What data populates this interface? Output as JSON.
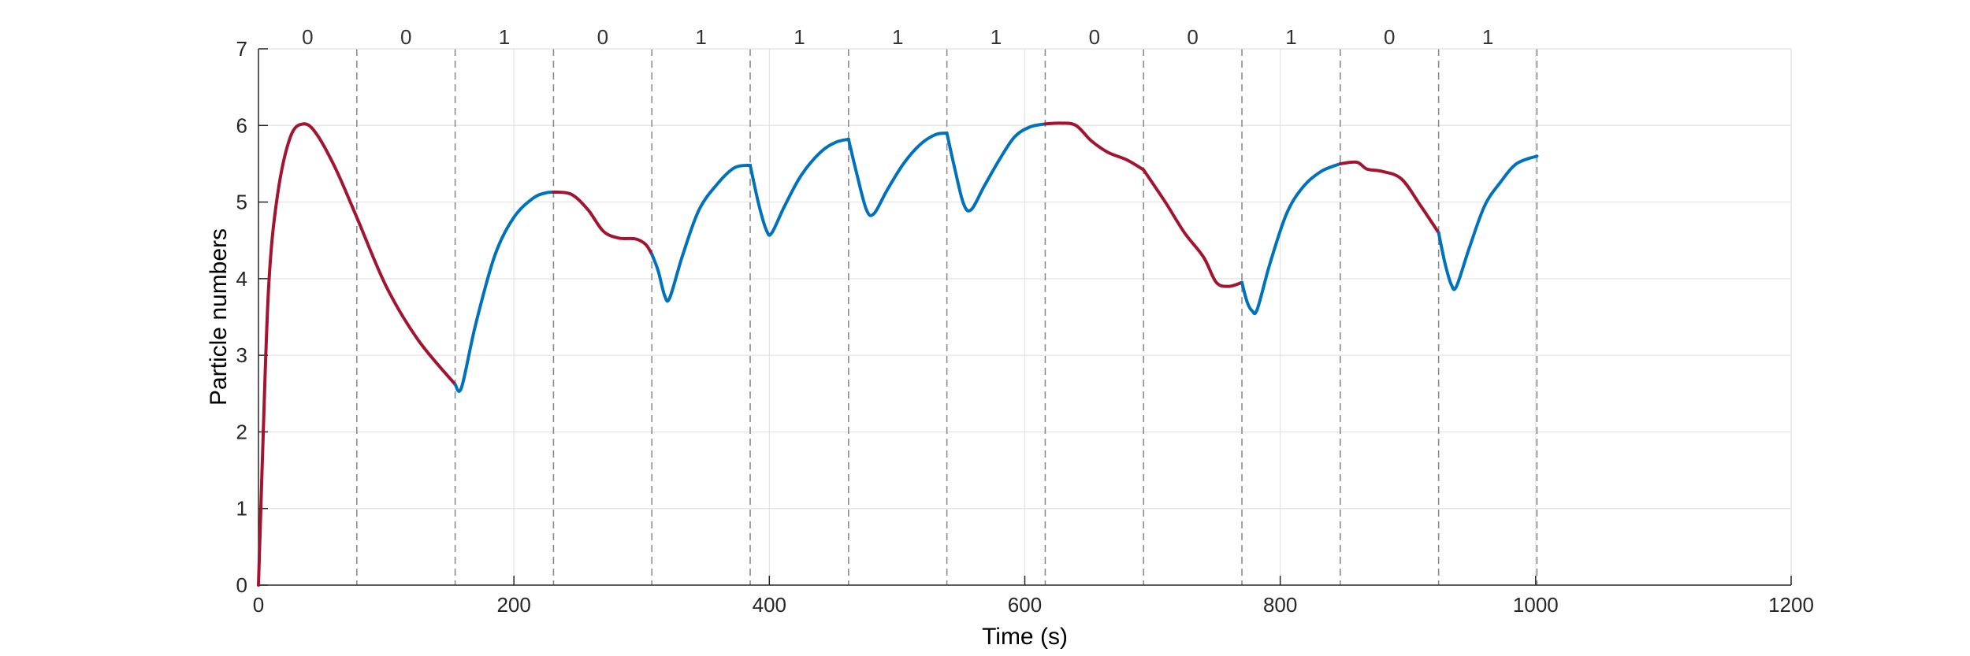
{
  "chart_data": {
    "type": "line",
    "xlabel": "Time (s)",
    "ylabel": "Particle numbers",
    "xlim": [
      0,
      1200
    ],
    "ylim": [
      0,
      7
    ],
    "xticks": [
      0,
      200,
      400,
      600,
      800,
      1000,
      1200
    ],
    "yticks": [
      0,
      1,
      2,
      3,
      4,
      5,
      6,
      7
    ],
    "grid": true,
    "boundaries": [
      77,
      154,
      231,
      308,
      385,
      462,
      539,
      616,
      693,
      770,
      847,
      924,
      1001
    ],
    "segment_labels": [
      "0",
      "0",
      "1",
      "0",
      "1",
      "1",
      "1",
      "1",
      "0",
      "0",
      "1",
      "0",
      "1"
    ],
    "colors": {
      "0": "#A2142F",
      "1": "#0072BD"
    },
    "series": [
      {
        "label_value": "0",
        "x": [
          0,
          3,
          8,
          15,
          25,
          35,
          45,
          60,
          77,
          100,
          125,
          154
        ],
        "y": [
          0.0,
          1.6,
          3.9,
          5.1,
          5.85,
          6.02,
          5.9,
          5.45,
          4.8,
          3.9,
          3.2,
          2.62
        ]
      },
      {
        "label_value": "1",
        "x": [
          154,
          159,
          170,
          185,
          200,
          215,
          225,
          231
        ],
        "y": [
          2.62,
          2.58,
          3.4,
          4.3,
          4.8,
          5.05,
          5.12,
          5.13
        ]
      },
      {
        "label_value": "0",
        "x": [
          231,
          245,
          258,
          270,
          282,
          295,
          303,
          308
        ],
        "y": [
          5.13,
          5.1,
          4.9,
          4.62,
          4.53,
          4.52,
          4.45,
          4.32
        ]
      },
      {
        "label_value": "1",
        "x": [
          308,
          313,
          318,
          322,
          332,
          345,
          360,
          373,
          385
        ],
        "y": [
          4.32,
          4.1,
          3.78,
          3.75,
          4.3,
          4.9,
          5.25,
          5.45,
          5.48
        ]
      },
      {
        "label_value": "1",
        "x": [
          385,
          392,
          398,
          402,
          412,
          425,
          440,
          452,
          462
        ],
        "y": [
          5.48,
          4.95,
          4.62,
          4.6,
          4.95,
          5.35,
          5.65,
          5.78,
          5.82
        ]
      },
      {
        "label_value": "1",
        "x": [
          462,
          468,
          476,
          482,
          492,
          505,
          518,
          530,
          539
        ],
        "y": [
          5.82,
          5.4,
          4.9,
          4.85,
          5.15,
          5.5,
          5.75,
          5.88,
          5.9
        ]
      },
      {
        "label_value": "1",
        "x": [
          539,
          545,
          552,
          558,
          568,
          580,
          592,
          604,
          616
        ],
        "y": [
          5.9,
          5.45,
          4.98,
          4.9,
          5.2,
          5.55,
          5.85,
          5.98,
          6.02
        ]
      },
      {
        "label_value": "0",
        "x": [
          616,
          628,
          640,
          652,
          665,
          680,
          693
        ],
        "y": [
          6.02,
          6.03,
          6.0,
          5.8,
          5.65,
          5.55,
          5.42
        ]
      },
      {
        "label_value": "0",
        "x": [
          693,
          710,
          725,
          740,
          750,
          760,
          770
        ],
        "y": [
          5.42,
          5.0,
          4.6,
          4.28,
          3.95,
          3.9,
          3.95
        ]
      },
      {
        "label_value": "1",
        "x": [
          770,
          774,
          778,
          782,
          792,
          805,
          818,
          832,
          847
        ],
        "y": [
          3.95,
          3.7,
          3.58,
          3.6,
          4.2,
          4.85,
          5.2,
          5.4,
          5.5
        ]
      },
      {
        "label_value": "0",
        "x": [
          847,
          860,
          868,
          880,
          895,
          910,
          924
        ],
        "y": [
          5.5,
          5.52,
          5.43,
          5.4,
          5.3,
          4.95,
          4.6
        ]
      },
      {
        "label_value": "1",
        "x": [
          924,
          929,
          934,
          938,
          948,
          960,
          972,
          985,
          1001
        ],
        "y": [
          4.6,
          4.2,
          3.92,
          3.9,
          4.4,
          4.95,
          5.25,
          5.5,
          5.6
        ]
      }
    ]
  }
}
